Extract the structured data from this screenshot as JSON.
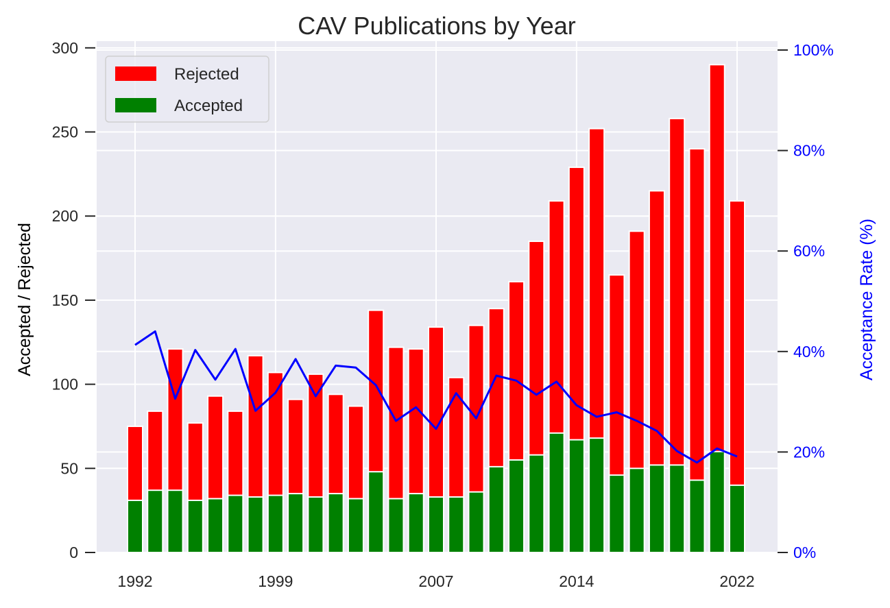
{
  "chart_data": {
    "type": "bar",
    "title": "CAV Publications by Year",
    "ylabel": "Accepted / Rejected",
    "y2label": "Acceptance Rate (%)",
    "ylim": [
      0,
      304
    ],
    "y2lim": [
      0,
      100
    ],
    "yticks": [
      0,
      50,
      100,
      150,
      200,
      250,
      300
    ],
    "y2ticks": [
      "0%",
      "20%",
      "40%",
      "60%",
      "80%",
      "100%"
    ],
    "xtick_labels": [
      "1992",
      "1999",
      "2007",
      "2014",
      "2022"
    ],
    "xtick_years": [
      1992,
      1999,
      2007,
      2014,
      2022
    ],
    "grid": true,
    "legend_position": "upper-left",
    "categories": [
      1992,
      1993,
      1994,
      1995,
      1996,
      1997,
      1998,
      1999,
      2000,
      2001,
      2002,
      2003,
      2004,
      2005,
      2006,
      2007,
      2008,
      2009,
      2010,
      2011,
      2012,
      2013,
      2014,
      2015,
      2016,
      2017,
      2018,
      2019,
      2020,
      2021,
      2022
    ],
    "series": [
      {
        "name": "Rejected",
        "color": "#ff0000",
        "totals": [
          75,
          84,
          121,
          77,
          93,
          84,
          117,
          107,
          91,
          106,
          94,
          87,
          144,
          122,
          121,
          134,
          104,
          135,
          145,
          161,
          185,
          209,
          229,
          252,
          165,
          191,
          215,
          258,
          240,
          290,
          209
        ]
      },
      {
        "name": "Accepted",
        "color": "#008000",
        "values": [
          31,
          37,
          37,
          31,
          32,
          34,
          33,
          34,
          35,
          33,
          35,
          32,
          48,
          32,
          35,
          33,
          33,
          36,
          51,
          55,
          58,
          71,
          67,
          68,
          46,
          50,
          52,
          52,
          43,
          60,
          40
        ]
      },
      {
        "name": "Acceptance Rate",
        "color": "#0000ff",
        "values": [
          41.3,
          44.0,
          30.6,
          40.3,
          34.4,
          40.5,
          28.2,
          31.8,
          38.5,
          31.1,
          37.2,
          36.8,
          33.3,
          26.2,
          28.9,
          24.6,
          31.7,
          26.7,
          35.2,
          34.2,
          31.4,
          34.0,
          29.3,
          27.0,
          27.9,
          26.2,
          24.2,
          20.2,
          17.9,
          20.7,
          19.1
        ]
      }
    ]
  }
}
